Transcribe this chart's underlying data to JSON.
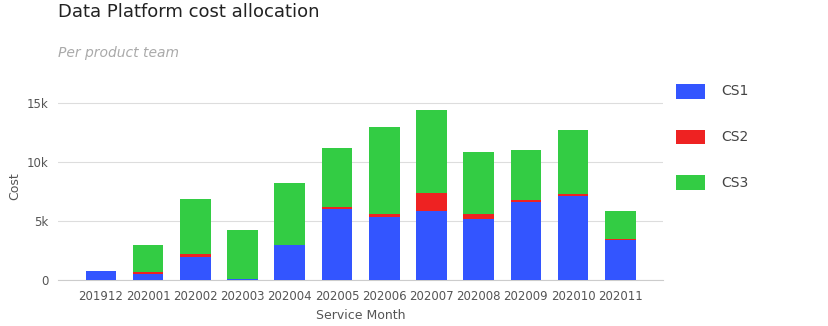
{
  "title": "Data Platform cost allocation",
  "subtitle": "Per product team",
  "xlabel": "Service Month",
  "ylabel": "Cost",
  "categories": [
    "201912",
    "202001",
    "202002",
    "202003",
    "202004",
    "202005",
    "202006",
    "202007",
    "202008",
    "202009",
    "202010",
    "202011"
  ],
  "CS1": [
    800,
    500,
    2000,
    100,
    3000,
    6000,
    5400,
    5900,
    5200,
    6600,
    7100,
    3400
  ],
  "CS2": [
    0,
    200,
    200,
    0,
    0,
    200,
    200,
    1500,
    400,
    200,
    200,
    100
  ],
  "CS3": [
    0,
    2300,
    4700,
    4200,
    5200,
    5000,
    7400,
    7000,
    5300,
    4200,
    5400,
    2400
  ],
  "color_CS1": "#3355ff",
  "color_CS2": "#ee2222",
  "color_CS3": "#33cc44",
  "ylim": [
    0,
    16000
  ],
  "yticks": [
    0,
    5000,
    10000,
    15000
  ],
  "ytick_labels": [
    "0",
    "5k",
    "10k",
    "15k"
  ],
  "legend_labels": [
    "CS1",
    "CS2",
    "CS3"
  ],
  "background_color": "#ffffff",
  "grid_color": "#dddddd",
  "title_fontsize": 13,
  "subtitle_fontsize": 10,
  "subtitle_color": "#aaaaaa",
  "axis_label_fontsize": 9,
  "tick_fontsize": 8.5
}
